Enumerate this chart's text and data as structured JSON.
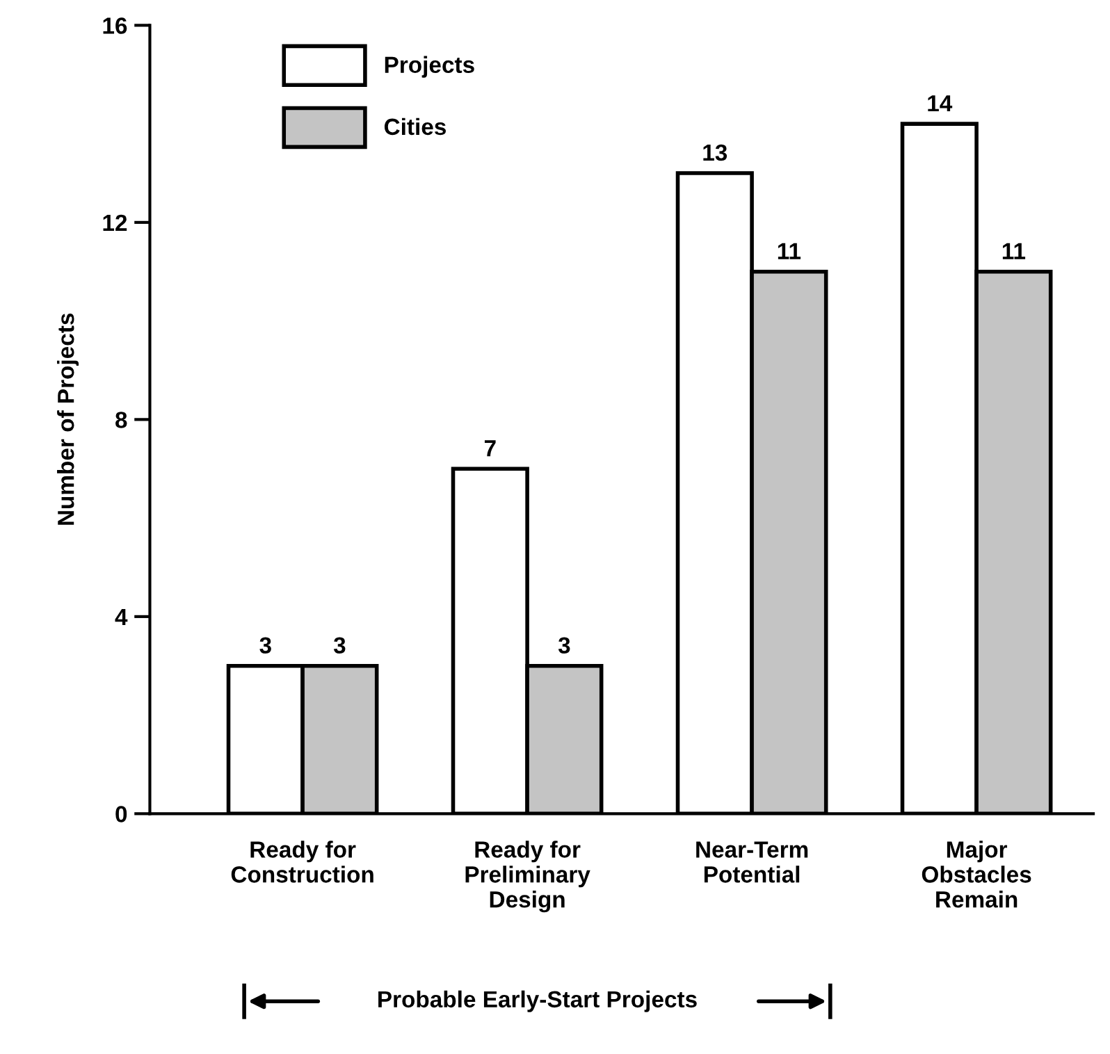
{
  "chart_data": {
    "type": "bar",
    "ylabel": "Number of Projects",
    "categories": [
      "Ready for\nConstruction",
      "Ready for\nPreliminary\nDesign",
      "Near-Term\nPotential",
      "Major\nObstacles\nRemain"
    ],
    "series": [
      {
        "name": "Projects",
        "color": "#ffffff",
        "values": [
          3,
          7,
          13,
          14
        ]
      },
      {
        "name": "Cities",
        "color": "#c4c4c4",
        "values": [
          3,
          3,
          11,
          11
        ]
      }
    ],
    "ylim": [
      0,
      16
    ],
    "yticks": [
      0,
      4,
      8,
      12,
      16
    ],
    "grid": false,
    "legend": "top left",
    "data_labels": true,
    "annotations": [
      "Probable Early-Start Projects"
    ]
  }
}
